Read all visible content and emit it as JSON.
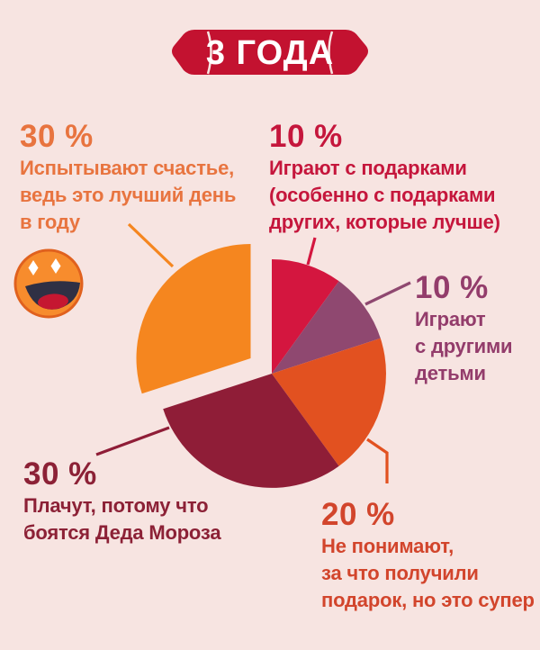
{
  "page": {
    "background_color": "#f7e4e1"
  },
  "badge": {
    "label": "3 ГОДА",
    "background_color": "#c31230",
    "text_color": "#ffffff"
  },
  "chart_data": {
    "type": "pie",
    "title": "3 ГОДА",
    "unit": "%",
    "direction": "clockwise",
    "start_angle_deg_from_top": 0,
    "legend_position": "callouts-around-pie",
    "slices": [
      {
        "id": "gifts",
        "value": 10,
        "color": "#d4163f",
        "label": "Играют с подарками (особенно с подарками других, которые лучше)"
      },
      {
        "id": "other-kids",
        "value": 10,
        "color": "#8f4870",
        "label": "Играют с другими детьми"
      },
      {
        "id": "confused",
        "value": 20,
        "color": "#e25120",
        "label": "Не понимают, за что получили подарок, но это супер"
      },
      {
        "id": "cry",
        "value": 30,
        "color": "#8f1d37",
        "label": "Плачут, потому что боятся Деда Мороза"
      },
      {
        "id": "happy",
        "value": 30,
        "color": "#f5861f",
        "label": "Испытывают счастье, ведь это лучший день в году",
        "exploded": true
      }
    ]
  },
  "annotations": [
    {
      "id": "happy",
      "percent": "30 %",
      "color": "#e8743f",
      "lines": [
        "Испытывают счастье,",
        "ведь это лучший день",
        "в году"
      ]
    },
    {
      "id": "gifts",
      "percent": "10 %",
      "color": "#c5163c",
      "lines": [
        "Играют с подарками",
        "(особенно с подарками",
        "других, которые лучше)"
      ]
    },
    {
      "id": "other-kids",
      "percent": "10 %",
      "color": "#933c6b",
      "lines": [
        "Играют",
        "с другими",
        "детьми"
      ]
    },
    {
      "id": "cry",
      "percent": "30 %",
      "color": "#8c2136",
      "lines": [
        "Плачут, потому что",
        "боятся Деда Мороза"
      ]
    },
    {
      "id": "confused",
      "percent": "20 %",
      "color": "#d2452c",
      "lines": [
        "Не понимают,",
        "за что получили",
        "подарок, но это супер"
      ]
    }
  ],
  "emoji": {
    "name": "laughing-face",
    "face_color": "#f78c2d",
    "face_border_color": "#e0611e",
    "mouth_color": "#2f3044",
    "tongue_color": "#c51731",
    "eye_color": "#ffffff"
  }
}
